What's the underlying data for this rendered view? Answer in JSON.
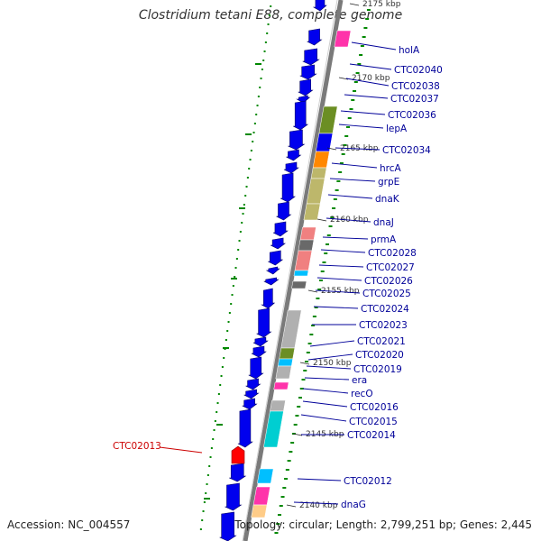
{
  "title": "Clostridium tetani E88, complete genome",
  "accession_text": "Accession: NC_004557",
  "topology_text": "Topology: circular; Length: 2,799,251 bp; Genes: 2,445",
  "colors": {
    "backbone": "#808080",
    "forward_gene": "#0000ee",
    "label_blue": "#000099",
    "label_red": "#cc0000",
    "highlight_gene": "#ff0000",
    "tick_green": "#008800"
  },
  "kbp_ticks": [
    "2175 kbp",
    "2170 kbp",
    "2165 kbp",
    "2160 kbp",
    "2155 kbp",
    "2150 kbp",
    "2145 kbp",
    "2140 kbp"
  ],
  "gene_labels": [
    "holA",
    "CTC02040",
    "CTC02038",
    "CTC02037",
    "CTC02036",
    "lepA",
    "CTC02034",
    "hrcA",
    "grpE",
    "dnaK",
    "dnaJ",
    "prmA",
    "CTC02028",
    "CTC02027",
    "CTC02026",
    "CTC02025",
    "CTC02024",
    "CTC02023",
    "CTC02021",
    "CTC02020",
    "CTC02019",
    "era",
    "recO",
    "CTC02016",
    "CTC02015",
    "CTC02014",
    "CTC02012",
    "dnaG"
  ],
  "highlighted_gene": "CTC02013"
}
